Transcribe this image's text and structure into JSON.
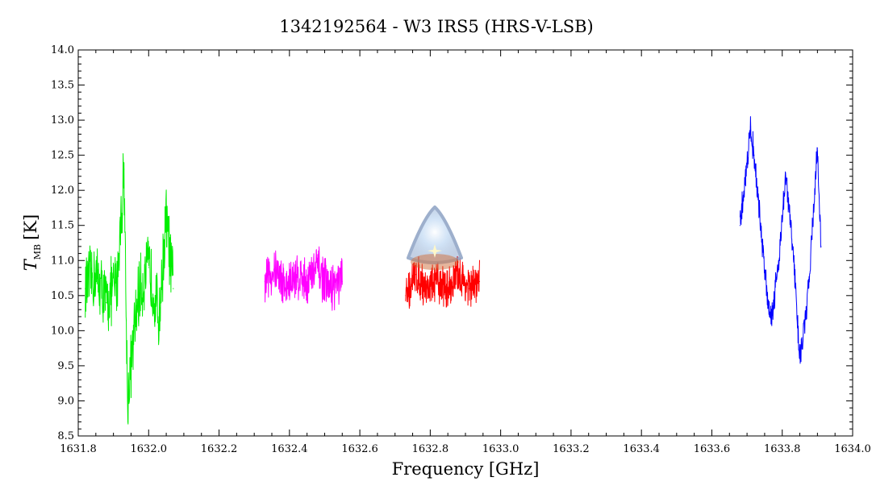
{
  "chart_data": {
    "type": "line",
    "title": "1342192564 - W3 IRS5 (HRS-V-LSB)",
    "xlabel": "Frequency [GHz]",
    "ylabel_main": "T",
    "ylabel_sub": "MB",
    "ylabel_unit": "[K]",
    "xlim": [
      1631.8,
      1634.0
    ],
    "ylim": [
      8.5,
      14.0
    ],
    "x_ticks": [
      "1631.8",
      "1632.0",
      "1632.2",
      "1632.4",
      "1632.6",
      "1632.8",
      "1633.0",
      "1633.2",
      "1633.4",
      "1633.6",
      "1633.8",
      "1634.0"
    ],
    "y_ticks": [
      "8.5",
      "9.0",
      "9.5",
      "10.0",
      "10.5",
      "11.0",
      "11.5",
      "12.0",
      "12.5",
      "13.0",
      "13.5",
      "14.0"
    ],
    "grid": false,
    "legend": "none",
    "series": [
      {
        "color": "#00ee00",
        "x": [
          1631.82,
          1631.85,
          1631.88,
          1631.91,
          1631.93,
          1631.94,
          1631.97,
          1632.0,
          1632.03,
          1632.05,
          1632.07
        ],
        "y": [
          10.6,
          10.8,
          10.4,
          10.7,
          12.3,
          9.0,
          10.5,
          10.9,
          10.2,
          11.6,
          10.6
        ]
      },
      {
        "color": "#ff00ff",
        "x": [
          1632.33,
          1632.36,
          1632.39,
          1632.42,
          1632.45,
          1632.48,
          1632.51,
          1632.55
        ],
        "y": [
          10.7,
          10.9,
          10.6,
          10.8,
          10.7,
          10.9,
          10.6,
          10.7
        ]
      },
      {
        "color": "#ff0000",
        "x": [
          1632.73,
          1632.76,
          1632.79,
          1632.82,
          1632.85,
          1632.88,
          1632.91,
          1632.94
        ],
        "y": [
          10.5,
          10.8,
          10.6,
          10.7,
          10.6,
          10.8,
          10.6,
          10.7
        ]
      },
      {
        "color": "#0000ff",
        "x": [
          1633.68,
          1633.7,
          1633.71,
          1633.72,
          1633.74,
          1633.76,
          1633.77,
          1633.79,
          1633.81,
          1633.83,
          1633.85,
          1633.87,
          1633.89,
          1633.9,
          1633.91
        ],
        "y": [
          11.5,
          12.4,
          12.9,
          12.5,
          11.4,
          10.4,
          10.2,
          11.0,
          12.2,
          11.2,
          9.6,
          10.3,
          11.8,
          12.6,
          11.2
        ]
      }
    ]
  },
  "logo": {
    "name": "herschel-logo"
  }
}
